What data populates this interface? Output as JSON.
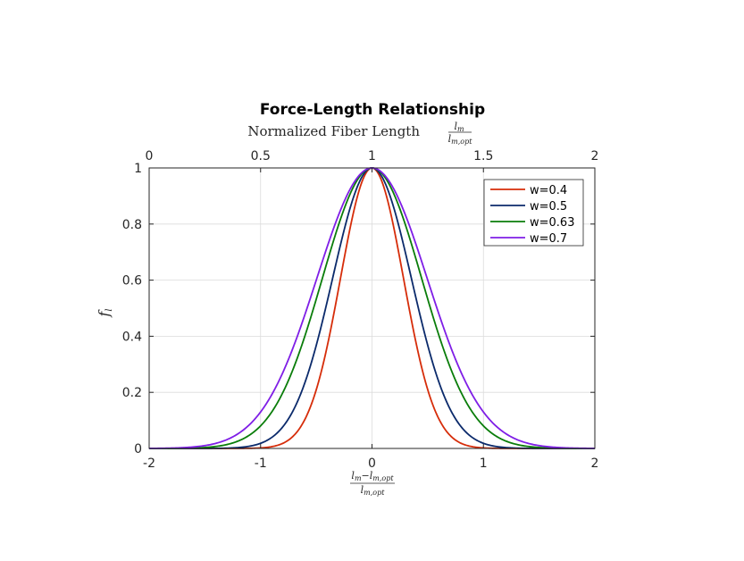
{
  "chart_data": {
    "type": "line",
    "title": "Force-Length Relationship",
    "subtitle_text": "Normalized Fiber Length",
    "subtitle_frac": {
      "num": "l",
      "num_sub": "m",
      "den": "l",
      "den_sub": "m,opt"
    },
    "xlabel_frac": {
      "num": "l",
      "num_sub": "m",
      "num_minus": "−",
      "num2": "l",
      "num2_sub": "m,opt",
      "den": "l",
      "den_sub": "m,opt"
    },
    "ylabel": {
      "base": "f",
      "sub": "l"
    },
    "xlim": [
      -2,
      2
    ],
    "ylim": [
      0,
      1
    ],
    "x2lim": [
      0,
      2
    ],
    "xticks": [
      -2,
      -1,
      0,
      1,
      2
    ],
    "xtick_labels": [
      "-2",
      "-1",
      "0",
      "1",
      "2"
    ],
    "yticks": [
      0,
      0.2,
      0.4,
      0.6,
      0.8,
      1
    ],
    "ytick_labels": [
      "0",
      "0.2",
      "0.4",
      "0.6",
      "0.8",
      "1"
    ],
    "x2ticks": [
      0,
      0.5,
      1,
      1.5,
      2
    ],
    "x2tick_labels": [
      "0",
      "0.5",
      "1",
      "1.5",
      "2"
    ],
    "grid": true,
    "legend_position": "top-right",
    "series": [
      {
        "name": "w=0.4",
        "w": 0.4,
        "color": "#d62d0a",
        "x": [
          -2,
          -1.5,
          -1,
          -0.8,
          -0.6,
          -0.4,
          -0.2,
          0,
          0.2,
          0.4,
          0.6,
          0.8,
          1,
          1.5,
          2
        ],
        "y": [
          0,
          0,
          0.002,
          0.018,
          0.105,
          0.368,
          0.779,
          1,
          0.779,
          0.368,
          0.105,
          0.018,
          0.002,
          0,
          0
        ]
      },
      {
        "name": "w=0.5",
        "w": 0.5,
        "color": "#0b2a6b",
        "x": [
          -2,
          -1.5,
          -1,
          -0.8,
          -0.6,
          -0.4,
          -0.2,
          0,
          0.2,
          0.4,
          0.6,
          0.8,
          1,
          1.5,
          2
        ],
        "y": [
          0,
          0,
          0.018,
          0.077,
          0.237,
          0.527,
          0.852,
          1,
          0.852,
          0.527,
          0.237,
          0.077,
          0.018,
          0,
          0
        ]
      },
      {
        "name": "w=0.63",
        "w": 0.63,
        "color": "#0a7d0a",
        "x": [
          -2,
          -1.5,
          -1,
          -0.8,
          -0.6,
          -0.4,
          -0.2,
          0,
          0.2,
          0.4,
          0.6,
          0.8,
          1,
          1.5,
          2
        ],
        "y": [
          0,
          0.003,
          0.08,
          0.199,
          0.403,
          0.668,
          0.904,
          1,
          0.904,
          0.668,
          0.403,
          0.199,
          0.08,
          0.003,
          0
        ]
      },
      {
        "name": "w=0.7",
        "w": 0.7,
        "color": "#7f1ee6",
        "x": [
          -2,
          -1.5,
          -1,
          -0.8,
          -0.6,
          -0.4,
          -0.2,
          0,
          0.2,
          0.4,
          0.6,
          0.8,
          1,
          1.5,
          2
        ],
        "y": [
          0,
          0.01,
          0.13,
          0.271,
          0.48,
          0.721,
          0.922,
          1,
          0.922,
          0.721,
          0.48,
          0.271,
          0.13,
          0.01,
          0
        ]
      }
    ]
  }
}
